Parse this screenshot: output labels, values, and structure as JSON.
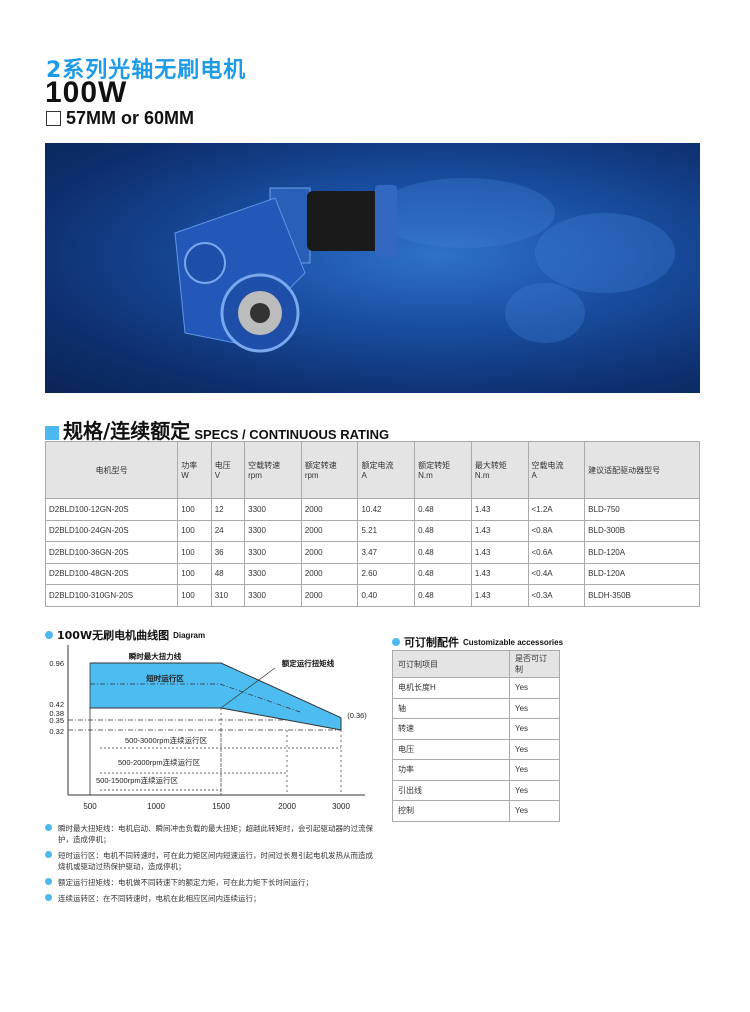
{
  "header": {
    "series_title": "2系列光轴无刷电机",
    "power": "100W",
    "frame_size": "57MM or 60MM"
  },
  "banner": {
    "image": "blue worm-gear reducer with brushless motor on world-map background"
  },
  "specs": {
    "title_cn": "规格/连续额定",
    "title_en": "SPECS / CONTINUOUS RATING",
    "headers": [
      [
        "电机型号",
        ""
      ],
      [
        "功率",
        "W"
      ],
      [
        "电压",
        "V"
      ],
      [
        "空载转速",
        "rpm"
      ],
      [
        "额定转速",
        "rpm"
      ],
      [
        "额定电流",
        "A"
      ],
      [
        "额定转矩",
        "N.m"
      ],
      [
        "最大转矩",
        "N.m"
      ],
      [
        "空载电流",
        "A"
      ],
      [
        "建议适配驱动器型号",
        ""
      ]
    ],
    "rows": [
      [
        "D2BLD100-12GN-20S",
        "100",
        "12",
        "3300",
        "2000",
        "10.42",
        "0.48",
        "1.43",
        "<1.2A",
        "BLD-750"
      ],
      [
        "D2BLD100-24GN-20S",
        "100",
        "24",
        "3300",
        "2000",
        "5.21",
        "0.48",
        "1.43",
        "<0.8A",
        "BLD-300B"
      ],
      [
        "D2BLD100-36GN-20S",
        "100",
        "36",
        "3300",
        "2000",
        "3.47",
        "0.48",
        "1.43",
        "<0.6A",
        "BLD-120A"
      ],
      [
        "D2BLD100-48GN-20S",
        "100",
        "48",
        "3300",
        "2000",
        "2.60",
        "0.48",
        "1.43",
        "<0.4A",
        "BLD-120A"
      ],
      [
        "D2BLD100-310GN-20S",
        "100",
        "310",
        "3300",
        "2000",
        "0.40",
        "0.48",
        "1.43",
        "<0.3A",
        "BLDH-350B"
      ]
    ]
  },
  "diagram": {
    "title_cn": "100W无刷电机曲线图",
    "title_en": "Diagram"
  },
  "chart_data": {
    "type": "area",
    "x_ticks": [
      "500",
      "1000",
      "1500",
      "2000",
      "3000"
    ],
    "y_ticks": [
      "0.96",
      "0.42",
      "0.38",
      "0.35",
      "0.32"
    ],
    "series": [
      {
        "name": "瞬时最大扭力线",
        "x": [
          500,
          1500,
          3000
        ],
        "y": [
          0.96,
          0.96,
          0.36
        ]
      },
      {
        "name": "额定运行扭矩线",
        "x": [
          500,
          1500,
          2000,
          3000
        ],
        "y": [
          0.42,
          0.42,
          0.35,
          0.32
        ]
      }
    ],
    "annotations": [
      "短时运行区",
      "(0.36)",
      "500-3000rpm连续运行区",
      "500-2000rpm连续运行区",
      "500-1500rpm连续运行区"
    ],
    "fill_color": "#4dbcf0"
  },
  "notes": [
    "瞬时最大扭矩线：电机启动、瞬间冲击负载的最大扭矩；超越此转矩时，会引起驱动器的过流保护，造成停机；",
    "短时运行区：电机不同转速时，可在此力矩区间内短速运行，时间过长易引起电机发热从而造成烧机或驱动过热保护驱动，造成停机；",
    "额定运行扭矩线：电机做不同转速下的额定力矩，可在此力矩下长时间运行；",
    "连续运转区：在不同转速时，电机在此相应区间内连续运行；"
  ],
  "accessories": {
    "title_cn": "可订制配件",
    "title_en": "Customizable accessories",
    "headers": [
      "可订制项目",
      "是否可订制"
    ],
    "rows": [
      [
        "电机长度H",
        "Yes"
      ],
      [
        "轴",
        "Yes"
      ],
      [
        "转速",
        "Yes"
      ],
      [
        "电压",
        "Yes"
      ],
      [
        "功率",
        "Yes"
      ],
      [
        "引出线",
        "Yes"
      ],
      [
        "控制",
        "Yes"
      ]
    ]
  },
  "colors": {
    "accent": "#1e9be6",
    "bullet": "#4db8f0"
  }
}
